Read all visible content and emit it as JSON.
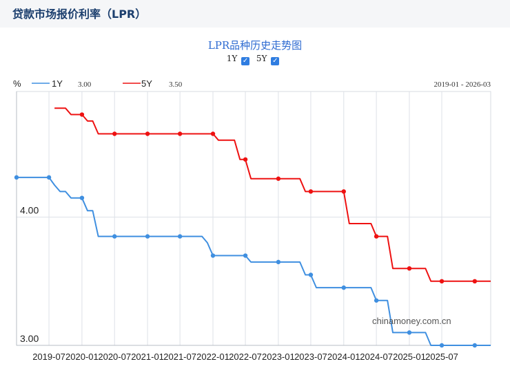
{
  "header": {
    "title": "贷款市场报价利率（LPR）"
  },
  "chart": {
    "title": "LPR品种历史走势图",
    "toggles": [
      {
        "label": "1Y",
        "checked": true,
        "check_glyph": "✓"
      },
      {
        "label": "5Y",
        "checked": true,
        "check_glyph": "✓"
      }
    ]
  },
  "chart_data": {
    "type": "line",
    "unit_label": "%",
    "range_label": "2019-01 - 2026-03",
    "watermark": "chinamoney.com.cn",
    "ylim": [
      3.0,
      4.98
    ],
    "y_ticks": [
      {
        "value": 3.0,
        "label": "3.00"
      },
      {
        "value": 4.0,
        "label": "4.00"
      }
    ],
    "x_ticks": [
      {
        "t": "2019-07-01",
        "label": "2019-07"
      },
      {
        "t": "2020-01-01",
        "label": "2020-01"
      },
      {
        "t": "2020-07-01",
        "label": "2020-07"
      },
      {
        "t": "2021-01-01",
        "label": "2021-01"
      },
      {
        "t": "2021-07-01",
        "label": "2021-07"
      },
      {
        "t": "2022-01-01",
        "label": "2022-01"
      },
      {
        "t": "2022-07-01",
        "label": "2022-07"
      },
      {
        "t": "2023-01-01",
        "label": "2023-01"
      },
      {
        "t": "2023-07-01",
        "label": "2023-07"
      },
      {
        "t": "2024-01-01",
        "label": "2024-01"
      },
      {
        "t": "2024-07-01",
        "label": "2024-07"
      },
      {
        "t": "2025-01-01",
        "label": "2025-01"
      },
      {
        "t": "2025-07-01",
        "label": "2025-07"
      }
    ],
    "x_range": [
      "2019-01-01",
      "2026-03-31"
    ],
    "grid": true,
    "series": [
      {
        "name": "1Y",
        "color": "#3f8fe0",
        "legend_value": "3.00",
        "points": [
          [
            "2019-01-01",
            4.31
          ],
          [
            "2019-07-01",
            4.31
          ],
          [
            "2019-08-01",
            4.25
          ],
          [
            "2019-09-01",
            4.2
          ],
          [
            "2019-10-01",
            4.2
          ],
          [
            "2019-11-01",
            4.15
          ],
          [
            "2020-01-01",
            4.15
          ],
          [
            "2020-02-01",
            4.05
          ],
          [
            "2020-03-01",
            4.05
          ],
          [
            "2020-04-01",
            3.85
          ],
          [
            "2021-11-01",
            3.85
          ],
          [
            "2021-12-01",
            3.8
          ],
          [
            "2022-01-01",
            3.7
          ],
          [
            "2022-07-01",
            3.7
          ],
          [
            "2022-08-01",
            3.65
          ],
          [
            "2023-05-01",
            3.65
          ],
          [
            "2023-06-01",
            3.55
          ],
          [
            "2023-07-01",
            3.55
          ],
          [
            "2023-08-01",
            3.45
          ],
          [
            "2024-06-01",
            3.45
          ],
          [
            "2024-07-01",
            3.35
          ],
          [
            "2024-09-01",
            3.35
          ],
          [
            "2024-10-01",
            3.1
          ],
          [
            "2025-04-01",
            3.1
          ],
          [
            "2025-05-01",
            3.0
          ],
          [
            "2026-03-31",
            3.0
          ]
        ],
        "markers": [
          "2019-01-01",
          "2019-07-01",
          "2020-01-01",
          "2020-07-01",
          "2021-01-01",
          "2021-07-01",
          "2022-01-01",
          "2022-07-01",
          "2023-01-01",
          "2023-07-01",
          "2024-01-01",
          "2024-07-01",
          "2025-01-01",
          "2025-07-01",
          "2026-01-01"
        ]
      },
      {
        "name": "5Y",
        "color": "#ee1111",
        "legend_value": "3.50",
        "points": [
          [
            "2019-08-01",
            4.85
          ],
          [
            "2019-10-01",
            4.85
          ],
          [
            "2019-11-01",
            4.8
          ],
          [
            "2020-01-01",
            4.8
          ],
          [
            "2020-02-01",
            4.75
          ],
          [
            "2020-03-01",
            4.75
          ],
          [
            "2020-04-01",
            4.65
          ],
          [
            "2022-01-01",
            4.65
          ],
          [
            "2022-02-01",
            4.6
          ],
          [
            "2022-05-01",
            4.6
          ],
          [
            "2022-06-01",
            4.45
          ],
          [
            "2022-07-01",
            4.45
          ],
          [
            "2022-08-01",
            4.3
          ],
          [
            "2023-05-01",
            4.3
          ],
          [
            "2023-06-01",
            4.2
          ],
          [
            "2024-01-01",
            4.2
          ],
          [
            "2024-02-01",
            3.95
          ],
          [
            "2024-06-01",
            3.95
          ],
          [
            "2024-07-01",
            3.85
          ],
          [
            "2024-09-01",
            3.85
          ],
          [
            "2024-10-01",
            3.6
          ],
          [
            "2025-04-01",
            3.6
          ],
          [
            "2025-05-01",
            3.5
          ],
          [
            "2026-03-31",
            3.5
          ]
        ],
        "markers": [
          "2020-01-01",
          "2020-07-01",
          "2021-01-01",
          "2021-07-01",
          "2022-01-01",
          "2022-07-01",
          "2023-01-01",
          "2023-07-01",
          "2024-01-01",
          "2024-07-01",
          "2025-01-01",
          "2025-07-01",
          "2026-01-01"
        ]
      }
    ]
  }
}
